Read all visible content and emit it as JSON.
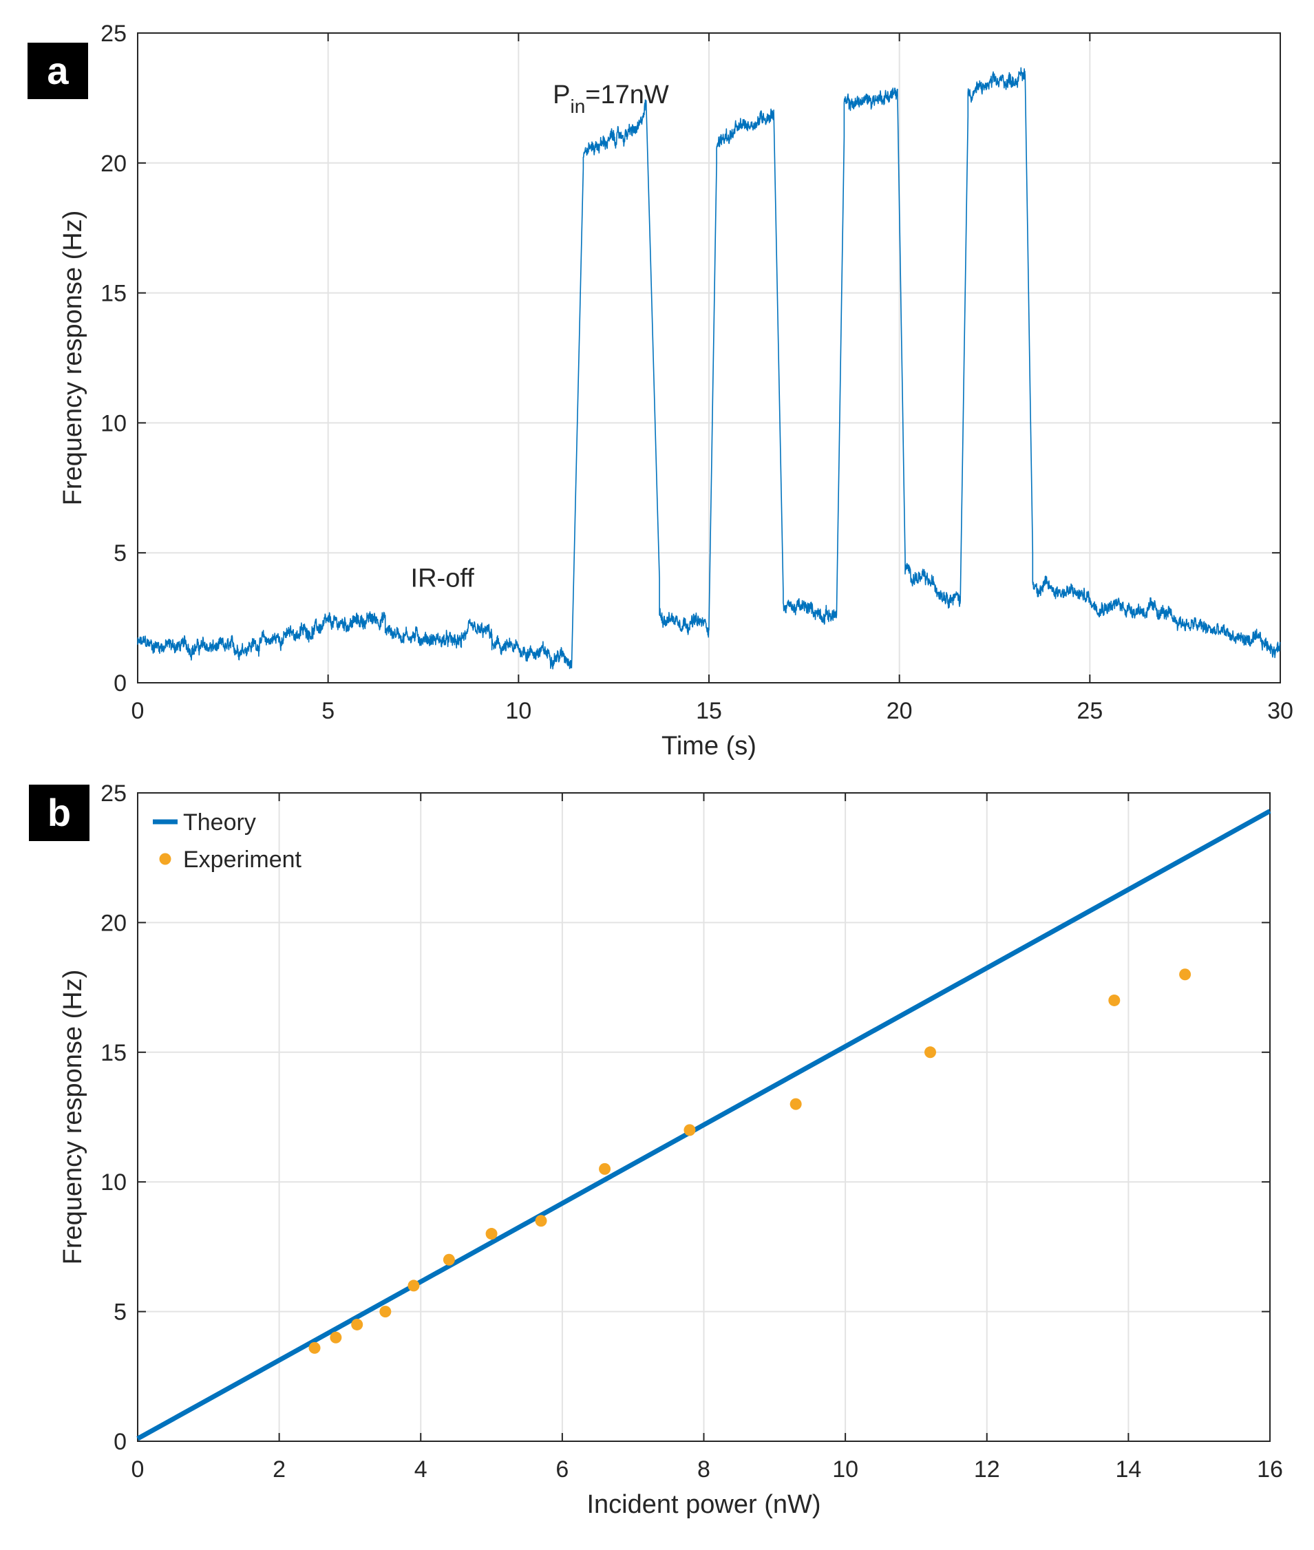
{
  "chart_data": [
    {
      "panel": "a",
      "type": "line",
      "xlabel": "Time (s)",
      "ylabel": "Frequency response (Hz)",
      "xlim": [
        0,
        30
      ],
      "ylim": [
        0,
        25
      ],
      "xticks": [
        0,
        5,
        10,
        15,
        20,
        25,
        30
      ],
      "yticks": [
        0,
        5,
        10,
        15,
        20,
        25
      ],
      "grid": true,
      "color": "#0072BD",
      "annotations": [
        {
          "text_main": "P",
          "text_sub": "in",
          "text_rest": "=17nW",
          "x": 10.9,
          "y": 22.3
        },
        {
          "text": "IR-off",
          "x": 8.0,
          "y": 3.7
        }
      ],
      "series": [
        {
          "name": "Frequency response",
          "noise_amplitude": 0.35,
          "segments": [
            {
              "x0": 0.0,
              "x1": 2.5,
              "y0": 1.5,
              "y1": 1.3
            },
            {
              "x0": 2.5,
              "x1": 5.0,
              "y0": 1.3,
              "y1": 2.2
            },
            {
              "x0": 5.0,
              "x1": 6.5,
              "y0": 2.2,
              "y1": 2.5
            },
            {
              "x0": 6.5,
              "x1": 8.5,
              "y0": 2.0,
              "y1": 1.5
            },
            {
              "x0": 8.5,
              "x1": 9.3,
              "y0": 1.9,
              "y1": 1.9
            },
            {
              "x0": 9.3,
              "x1": 11.4,
              "y0": 1.4,
              "y1": 1.0
            },
            {
              "x0": 11.4,
              "x1": 11.7,
              "y0": 1.0,
              "y1": 19.8
            },
            {
              "x0": 11.7,
              "x1": 13.2,
              "y0": 20.5,
              "y1": 21.3
            },
            {
              "x0": 13.2,
              "x1": 13.35,
              "y0": 21.3,
              "y1": 22.4
            },
            {
              "x0": 13.35,
              "x1": 13.7,
              "y0": 22.4,
              "y1": 4.0
            },
            {
              "x0": 13.7,
              "x1": 15.0,
              "y0": 2.6,
              "y1": 2.2
            },
            {
              "x0": 15.0,
              "x1": 15.2,
              "y0": 2.2,
              "y1": 20.0
            },
            {
              "x0": 15.2,
              "x1": 16.7,
              "y0": 20.8,
              "y1": 22.0
            },
            {
              "x0": 16.7,
              "x1": 16.95,
              "y0": 22.0,
              "y1": 3.5
            },
            {
              "x0": 16.95,
              "x1": 18.35,
              "y0": 3.0,
              "y1": 2.6
            },
            {
              "x0": 18.35,
              "x1": 18.55,
              "y0": 2.6,
              "y1": 21.0
            },
            {
              "x0": 18.55,
              "x1": 19.95,
              "y0": 22.2,
              "y1": 22.7
            },
            {
              "x0": 19.95,
              "x1": 20.15,
              "y0": 22.7,
              "y1": 4.8
            },
            {
              "x0": 20.15,
              "x1": 21.6,
              "y0": 4.3,
              "y1": 3.2
            },
            {
              "x0": 21.6,
              "x1": 21.8,
              "y0": 3.2,
              "y1": 21.8
            },
            {
              "x0": 21.8,
              "x1": 23.3,
              "y0": 22.7,
              "y1": 23.4
            },
            {
              "x0": 23.3,
              "x1": 23.5,
              "y0": 23.4,
              "y1": 5.0
            },
            {
              "x0": 23.5,
              "x1": 25.0,
              "y0": 3.8,
              "y1": 3.3
            },
            {
              "x0": 25.0,
              "x1": 27.0,
              "y0": 3.1,
              "y1": 2.7
            },
            {
              "x0": 27.0,
              "x1": 30.0,
              "y0": 2.5,
              "y1": 1.3
            }
          ]
        }
      ]
    },
    {
      "panel": "b",
      "type": "scatter",
      "xlabel": "Incident power (nW)",
      "ylabel": "Frequency response (Hz)",
      "xlim": [
        0,
        16
      ],
      "ylim": [
        0,
        25
      ],
      "xticks": [
        0,
        2,
        4,
        6,
        8,
        10,
        12,
        14,
        16
      ],
      "yticks": [
        0,
        5,
        10,
        15,
        20,
        25
      ],
      "grid": true,
      "legend_position": "top-left",
      "series": [
        {
          "name": "Theory",
          "kind": "line",
          "color": "#0072BD",
          "x": [
            0,
            16
          ],
          "y": [
            0.1,
            24.3
          ]
        },
        {
          "name": "Experiment",
          "kind": "scatter",
          "color": "#F5A623",
          "x": [
            2.5,
            2.8,
            3.1,
            3.5,
            3.9,
            4.4,
            5.0,
            5.7,
            6.6,
            7.8,
            9.3,
            11.2,
            13.8,
            14.8
          ],
          "y": [
            3.6,
            4.0,
            4.5,
            5.0,
            6.0,
            7.0,
            8.0,
            8.5,
            10.5,
            12.0,
            13.0,
            15.0,
            17.0,
            18.0
          ]
        }
      ]
    }
  ],
  "panel_labels": {
    "a": "a",
    "b": "b"
  }
}
